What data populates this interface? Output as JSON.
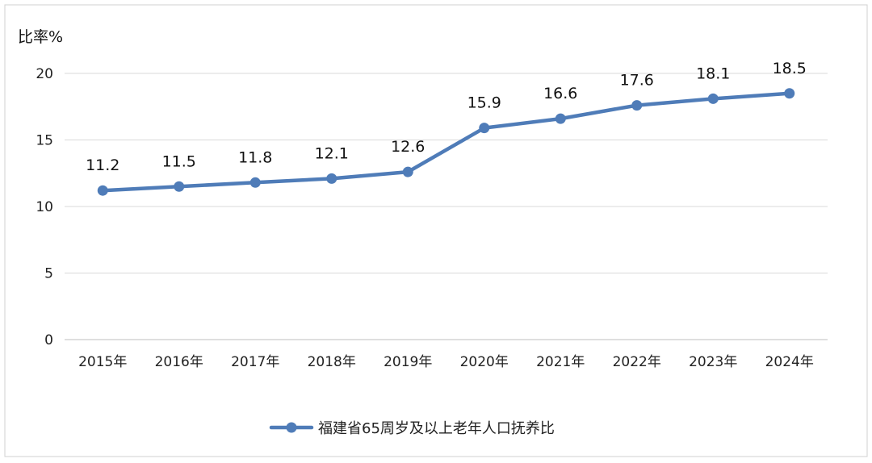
{
  "chart_data": {
    "type": "line",
    "ylabel": "比率%",
    "ylim": [
      0,
      20
    ],
    "yticks": [
      0,
      5,
      10,
      15,
      20
    ],
    "grid": true,
    "legend_position": "bottom",
    "categories": [
      "2015年",
      "2016年",
      "2017年",
      "2018年",
      "2019年",
      "2020年",
      "2021年",
      "2022年",
      "2023年",
      "2024年"
    ],
    "series": [
      {
        "name": "福建省65周岁及以上老年人口抚养比",
        "values": [
          11.2,
          11.5,
          11.8,
          12.1,
          12.6,
          15.9,
          16.6,
          17.6,
          18.1,
          18.5
        ],
        "color": "#4F7CB8"
      }
    ]
  }
}
